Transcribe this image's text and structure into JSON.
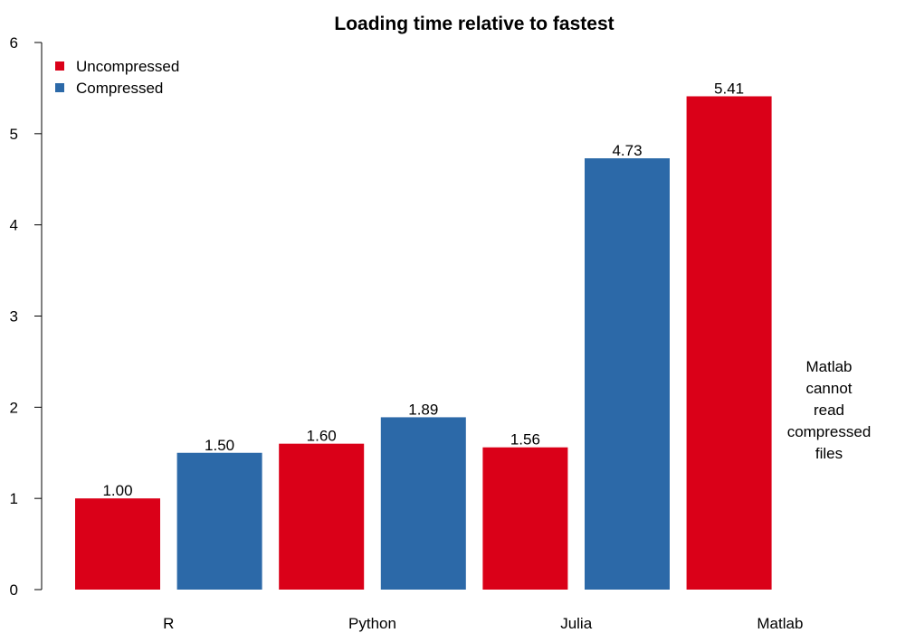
{
  "chart_data": {
    "type": "bar",
    "title": "Loading time relative to fastest",
    "xlabel": "",
    "ylabel": "",
    "ylim": [
      0,
      6
    ],
    "yticks": [
      0,
      1,
      2,
      3,
      4,
      5,
      6
    ],
    "categories": [
      "R",
      "Python",
      "Julia",
      "Matlab"
    ],
    "series": [
      {
        "name": "Uncompressed",
        "color": "#DA0018",
        "values": [
          1.0,
          1.6,
          1.56,
          5.41
        ]
      },
      {
        "name": "Compressed",
        "color": "#2C69A8",
        "values": [
          1.5,
          1.89,
          4.73,
          null
        ]
      }
    ],
    "data_labels": [
      [
        "1.00",
        "1.60",
        "1.56",
        "5.41"
      ],
      [
        "1.50",
        "1.89",
        "4.73",
        null
      ]
    ],
    "legend_position": "top-left",
    "grid": false,
    "annotation": "Matlab\ncannot\nread\ncompressed\nfiles"
  }
}
